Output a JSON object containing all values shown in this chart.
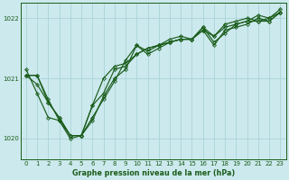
{
  "xlabel": "Graphe pression niveau de la mer (hPa)",
  "x_ticks": [
    0,
    1,
    2,
    3,
    4,
    5,
    6,
    7,
    8,
    9,
    10,
    11,
    12,
    13,
    14,
    15,
    16,
    17,
    18,
    19,
    20,
    21,
    22,
    23
  ],
  "ylim": [
    1019.65,
    1022.25
  ],
  "yticks": [
    1020,
    1021,
    1022
  ],
  "background_color": "#cce9ed",
  "grid_color": "#aad4d9",
  "line_color": "#1a5c1a",
  "series": [
    [
      1021.05,
      1021.05,
      1020.6,
      1020.35,
      1020.05,
      1020.05,
      1020.55,
      1020.75,
      1021.15,
      1021.2,
      1021.4,
      1021.5,
      1021.55,
      1021.6,
      1021.65,
      1021.65,
      1021.85,
      1021.7,
      1021.9,
      1021.95,
      1022.0,
      1021.95,
      1022.0,
      1022.1
    ],
    [
      1021.05,
      1021.05,
      1020.65,
      1020.3,
      1020.0,
      1020.05,
      1020.55,
      1021.0,
      1021.2,
      1021.25,
      1021.4,
      1021.5,
      1021.55,
      1021.6,
      1021.65,
      1021.65,
      1021.8,
      1021.7,
      1021.85,
      1021.9,
      1021.95,
      1021.95,
      1021.95,
      1022.1
    ],
    [
      1021.05,
      1020.9,
      1020.6,
      1020.35,
      1020.05,
      1020.05,
      1020.3,
      1020.7,
      1021.0,
      1021.15,
      1021.55,
      1021.4,
      1021.5,
      1021.6,
      1021.65,
      1021.65,
      1021.8,
      1021.55,
      1021.8,
      1021.85,
      1021.9,
      1022.0,
      1021.95,
      1022.1
    ],
    [
      1021.15,
      1020.75,
      1020.35,
      1020.3,
      1020.05,
      1020.05,
      1020.35,
      1020.65,
      1020.95,
      1021.3,
      1021.55,
      1021.45,
      1021.55,
      1021.65,
      1021.7,
      1021.65,
      1021.85,
      1021.6,
      1021.75,
      1021.9,
      1021.95,
      1022.05,
      1022.0,
      1022.15
    ]
  ],
  "marker": "D",
  "marker_size": 2.0,
  "linewidth": 0.85,
  "tick_fontsize": 5.0,
  "xlabel_fontsize": 5.8
}
